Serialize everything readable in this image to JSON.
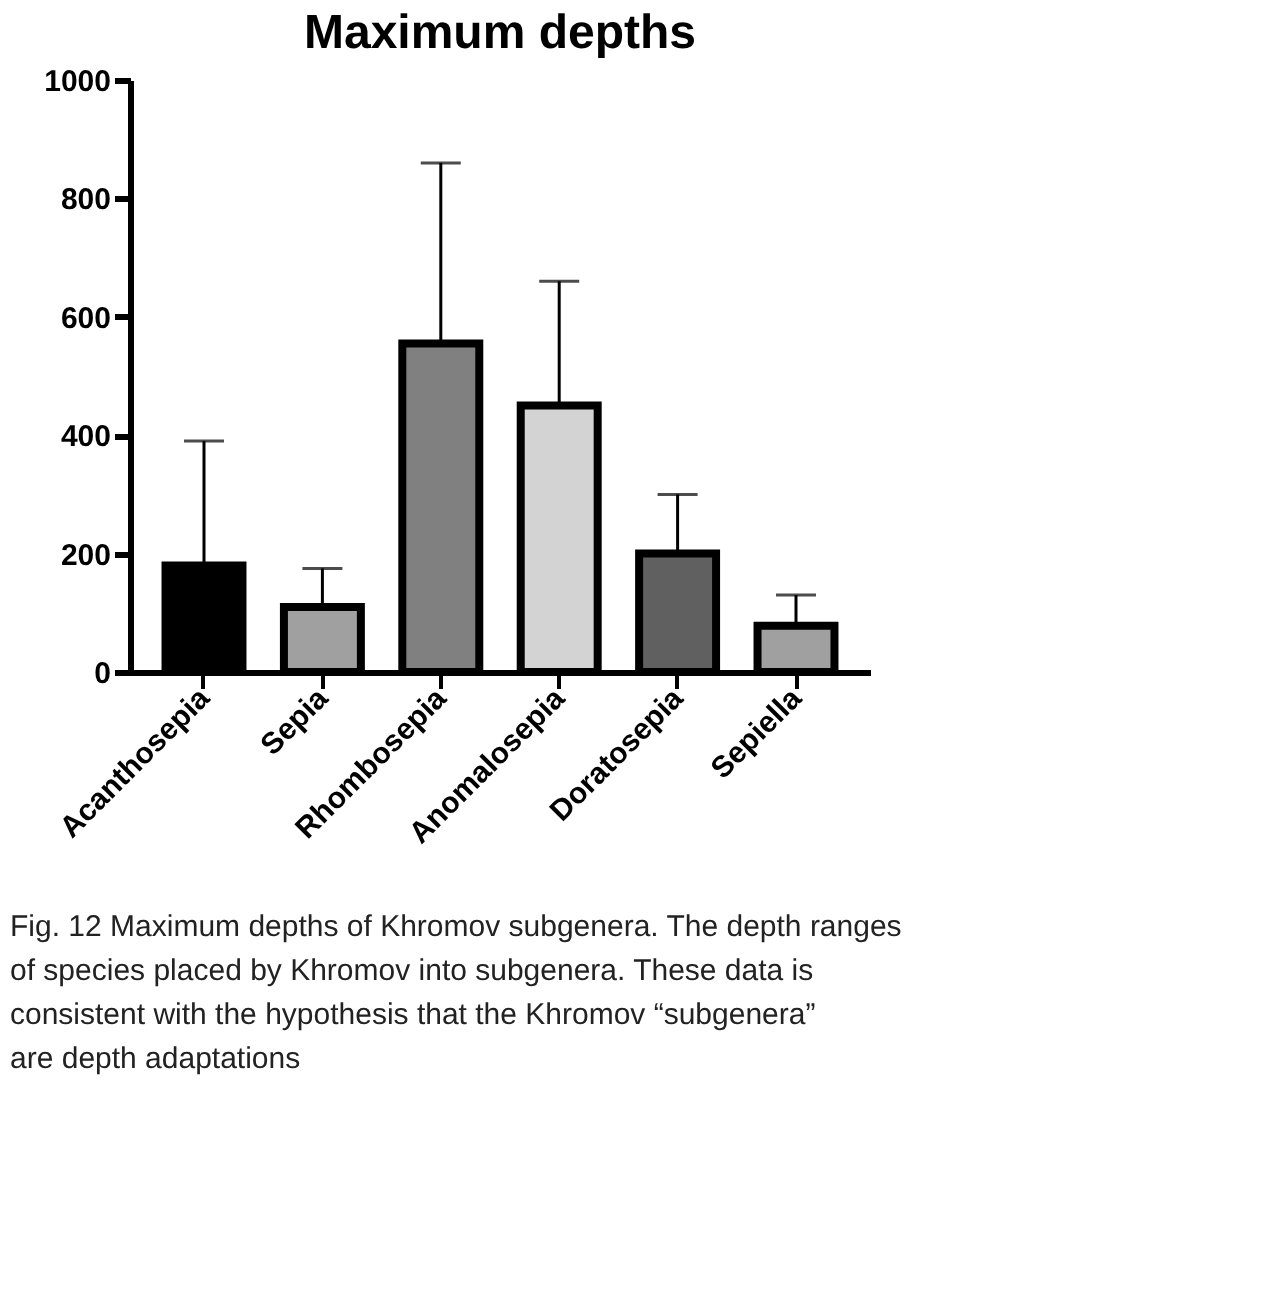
{
  "chart_data": {
    "type": "bar",
    "title": "Maximum depths",
    "categories": [
      "Acanthosepia",
      "Sepia",
      "Rhombosepia",
      "Anomalosepia",
      "Doratosepia",
      "Sepiella"
    ],
    "values": [
      180,
      110,
      555,
      450,
      200,
      78
    ],
    "errors": [
      [
        180,
        390
      ],
      [
        110,
        175
      ],
      [
        555,
        860
      ],
      [
        450,
        660
      ],
      [
        200,
        300
      ],
      [
        78,
        130
      ]
    ],
    "colors": [
      "#000000",
      "#a0a0a0",
      "#808080",
      "#d3d3d3",
      "#606060",
      "#a0a0a0"
    ],
    "ylim": [
      0,
      1000
    ],
    "yticks": [
      0,
      200,
      400,
      600,
      800,
      1000
    ],
    "grid": false,
    "annotations": [
      "Fig. 12 Maximum depths of Khromov subgenera. The depth ranges of species placed by Khromov into subgenera. These data is consistent with the hypothesis that the Khromov “subgenera” are depth adaptations"
    ]
  }
}
